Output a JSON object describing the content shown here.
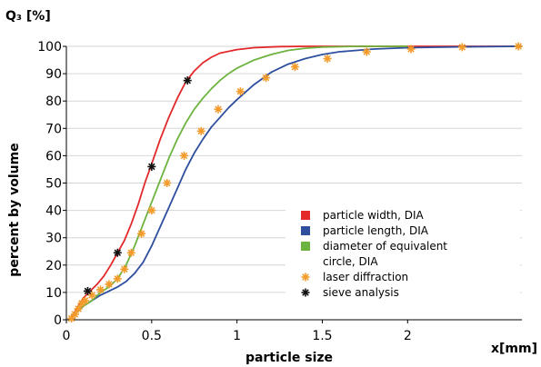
{
  "chart_data": {
    "type": "line",
    "title": "",
    "y_unit_label": "Q₃ [%]",
    "ylabel": "percent by volume",
    "xlabel": "particle size",
    "x_unit_label": "x[mm]",
    "xlim": [
      0,
      2.67
    ],
    "ylim": [
      0,
      100
    ],
    "x_ticks": [
      0,
      0.5,
      1,
      1.5,
      2
    ],
    "x_tick_labels": [
      "0",
      "0.5",
      "1",
      "1.5",
      "2"
    ],
    "y_ticks": [
      0,
      10,
      20,
      30,
      40,
      50,
      60,
      70,
      80,
      90,
      100
    ],
    "y_tick_labels": [
      "0",
      "10",
      "20",
      "30",
      "40",
      "50",
      "60",
      "70",
      "80",
      "90",
      "100"
    ],
    "grid": "horizontal",
    "legend_position": "bottom-right",
    "series": [
      {
        "name": "particle width, DIA",
        "kind": "line",
        "color": "#e3282a",
        "points": [
          [
            0.02,
            0
          ],
          [
            0.04,
            2
          ],
          [
            0.06,
            4
          ],
          [
            0.08,
            6
          ],
          [
            0.1,
            8
          ],
          [
            0.14,
            10.5
          ],
          [
            0.18,
            13
          ],
          [
            0.22,
            16
          ],
          [
            0.26,
            20
          ],
          [
            0.3,
            24.5
          ],
          [
            0.34,
            29
          ],
          [
            0.38,
            35
          ],
          [
            0.42,
            42
          ],
          [
            0.46,
            50
          ],
          [
            0.5,
            57
          ],
          [
            0.55,
            66
          ],
          [
            0.6,
            74
          ],
          [
            0.65,
            81
          ],
          [
            0.7,
            87
          ],
          [
            0.75,
            91
          ],
          [
            0.8,
            94
          ],
          [
            0.85,
            96
          ],
          [
            0.9,
            97.5
          ],
          [
            1.0,
            98.8
          ],
          [
            1.1,
            99.5
          ],
          [
            1.25,
            99.9
          ],
          [
            1.4,
            100
          ],
          [
            2.67,
            100
          ]
        ]
      },
      {
        "name": "particle length, DIA",
        "kind": "line",
        "color": "#2e4f9e",
        "points": [
          [
            0.02,
            0
          ],
          [
            0.05,
            2
          ],
          [
            0.1,
            5
          ],
          [
            0.15,
            7
          ],
          [
            0.2,
            9
          ],
          [
            0.25,
            10.5
          ],
          [
            0.3,
            12
          ],
          [
            0.35,
            14
          ],
          [
            0.4,
            17
          ],
          [
            0.45,
            21
          ],
          [
            0.5,
            27
          ],
          [
            0.55,
            34
          ],
          [
            0.6,
            41
          ],
          [
            0.65,
            48
          ],
          [
            0.7,
            55
          ],
          [
            0.75,
            61
          ],
          [
            0.8,
            66
          ],
          [
            0.85,
            70.5
          ],
          [
            0.9,
            74
          ],
          [
            0.95,
            77.5
          ],
          [
            1.0,
            80.5
          ],
          [
            1.1,
            86
          ],
          [
            1.2,
            90.5
          ],
          [
            1.3,
            93.5
          ],
          [
            1.4,
            95.5
          ],
          [
            1.5,
            97
          ],
          [
            1.6,
            98
          ],
          [
            1.8,
            99
          ],
          [
            2.0,
            99.5
          ],
          [
            2.3,
            99.8
          ],
          [
            2.67,
            100
          ]
        ]
      },
      {
        "name": "diameter of equivalent circle, DIA",
        "kind": "line",
        "color": "#6db33f",
        "points": [
          [
            0.02,
            0
          ],
          [
            0.05,
            2
          ],
          [
            0.1,
            5
          ],
          [
            0.15,
            7
          ],
          [
            0.2,
            10
          ],
          [
            0.25,
            12
          ],
          [
            0.3,
            15
          ],
          [
            0.35,
            20
          ],
          [
            0.4,
            27
          ],
          [
            0.45,
            35
          ],
          [
            0.5,
            43
          ],
          [
            0.55,
            51
          ],
          [
            0.6,
            59
          ],
          [
            0.65,
            66
          ],
          [
            0.7,
            72
          ],
          [
            0.75,
            77
          ],
          [
            0.8,
            81
          ],
          [
            0.85,
            84.5
          ],
          [
            0.9,
            87.5
          ],
          [
            0.95,
            90
          ],
          [
            1.0,
            92
          ],
          [
            1.1,
            95
          ],
          [
            1.2,
            97
          ],
          [
            1.3,
            98.5
          ],
          [
            1.4,
            99.3
          ],
          [
            1.5,
            99.7
          ],
          [
            1.7,
            100
          ],
          [
            2.0,
            100
          ]
        ]
      },
      {
        "name": "laser diffraction",
        "kind": "marker",
        "marker": "asterisk",
        "color": "#f39b2a",
        "points": [
          [
            0.03,
            0.5
          ],
          [
            0.05,
            2
          ],
          [
            0.07,
            4
          ],
          [
            0.09,
            6
          ],
          [
            0.11,
            7
          ],
          [
            0.15,
            9
          ],
          [
            0.2,
            11
          ],
          [
            0.25,
            13
          ],
          [
            0.3,
            15
          ],
          [
            0.34,
            18.5
          ],
          [
            0.38,
            24.5
          ],
          [
            0.44,
            31.5
          ],
          [
            0.5,
            40
          ],
          [
            0.59,
            50
          ],
          [
            0.69,
            60
          ],
          [
            0.79,
            69
          ],
          [
            0.89,
            77
          ],
          [
            1.02,
            83.5
          ],
          [
            1.17,
            88.5
          ],
          [
            1.34,
            92.5
          ],
          [
            1.53,
            95.5
          ],
          [
            1.76,
            98
          ],
          [
            2.02,
            99
          ],
          [
            2.32,
            99.7
          ],
          [
            2.65,
            100
          ]
        ]
      },
      {
        "name": "sieve analysis",
        "kind": "marker",
        "marker": "asterisk",
        "color": "#111111",
        "points": [
          [
            0.125,
            10.5
          ],
          [
            0.3,
            24.5
          ],
          [
            0.5,
            56
          ],
          [
            0.71,
            87.5
          ]
        ]
      }
    ]
  }
}
